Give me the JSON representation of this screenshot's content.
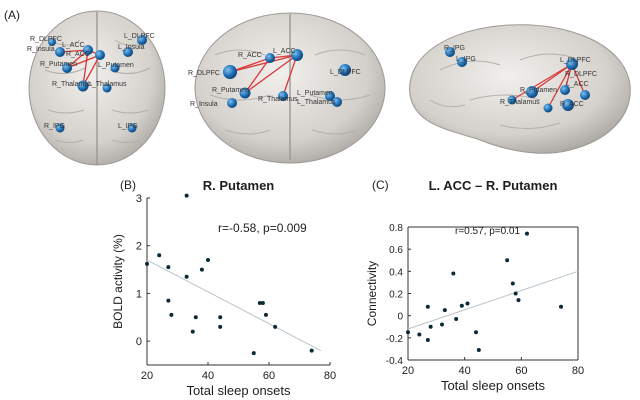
{
  "panelA": {
    "label": "(A)",
    "node_labels": {
      "top": [
        "R_DLPFC",
        "R_Insula",
        "L_ACC",
        "R_ACC",
        "L_DLPFC",
        "L_Insula",
        "R_Putamen",
        "L_Putamen",
        "R_Thalamus",
        "L_Thalamus",
        "R_IPG",
        "L_IPG"
      ],
      "front": [
        "R_DLPFC",
        "R_Putamen",
        "R_Insula",
        "R_ACC",
        "L_ACC",
        "L_DLPFC",
        "L_Putamen",
        "R_Thalamus",
        "L_Thalamus"
      ],
      "side": [
        "R_IPG",
        "L_IPG",
        "L_DLPFC",
        "R_DLPFC",
        "R_Putamen",
        "R_Thalamus",
        "L_ACC",
        "R_ACC"
      ]
    }
  },
  "panelB": {
    "label": "(B)",
    "chart_data": {
      "type": "scatter",
      "title": "R. Putamen",
      "xlabel": "Total sleep onsets",
      "ylabel": "BOLD activity (%)",
      "annotation": "r=-0.58, p=0.009",
      "xlim": [
        20,
        80
      ],
      "ylim": [
        -0.5,
        3
      ],
      "xticks": [
        "20",
        "40",
        "60",
        "80"
      ],
      "yticks": [
        "0",
        "1",
        "2",
        "3"
      ],
      "points": [
        {
          "x": 20,
          "y": 1.62
        },
        {
          "x": 24,
          "y": 1.8
        },
        {
          "x": 27,
          "y": 1.55
        },
        {
          "x": 27,
          "y": 0.85
        },
        {
          "x": 28,
          "y": 0.55
        },
        {
          "x": 33,
          "y": 3.05
        },
        {
          "x": 33,
          "y": 1.35
        },
        {
          "x": 35,
          "y": 0.2
        },
        {
          "x": 36,
          "y": 0.5
        },
        {
          "x": 38,
          "y": 1.5
        },
        {
          "x": 40,
          "y": 1.7
        },
        {
          "x": 44,
          "y": 0.3
        },
        {
          "x": 44,
          "y": 0.5
        },
        {
          "x": 55,
          "y": -0.25
        },
        {
          "x": 57,
          "y": 0.8
        },
        {
          "x": 58,
          "y": 0.8
        },
        {
          "x": 59,
          "y": 0.55
        },
        {
          "x": 62,
          "y": 0.3
        },
        {
          "x": 74,
          "y": -0.2
        }
      ],
      "trendline": {
        "x": [
          20,
          77
        ],
        "y": [
          1.7,
          -0.2
        ]
      },
      "grid": false
    }
  },
  "panelC": {
    "label": "(C)",
    "chart_data": {
      "type": "scatter",
      "title": "L. ACC – R. Putamen",
      "xlabel": "Total sleep onsets",
      "ylabel": "Connectivity",
      "annotation": "r=0.57, p=0.01",
      "xlim": [
        20,
        80
      ],
      "ylim": [
        -0.4,
        0.8
      ],
      "xticks": [
        "20",
        "40",
        "60",
        "80"
      ],
      "yticks": [
        "-0.4",
        "-0.2",
        "0",
        "0.2",
        "0.4",
        "0.6",
        "0.8"
      ],
      "points": [
        {
          "x": 20,
          "y": -0.15
        },
        {
          "x": 24,
          "y": -0.17
        },
        {
          "x": 27,
          "y": -0.22
        },
        {
          "x": 27,
          "y": 0.08
        },
        {
          "x": 28,
          "y": -0.1
        },
        {
          "x": 32,
          "y": -0.08
        },
        {
          "x": 33,
          "y": 0.05
        },
        {
          "x": 36,
          "y": 0.38
        },
        {
          "x": 37,
          "y": -0.03
        },
        {
          "x": 39,
          "y": 0.09
        },
        {
          "x": 41,
          "y": 0.11
        },
        {
          "x": 44,
          "y": -0.15
        },
        {
          "x": 45,
          "y": -0.31
        },
        {
          "x": 55,
          "y": 0.5
        },
        {
          "x": 57,
          "y": 0.29
        },
        {
          "x": 58,
          "y": 0.2
        },
        {
          "x": 59,
          "y": 0.14
        },
        {
          "x": 62,
          "y": 0.74
        },
        {
          "x": 74,
          "y": 0.08
        }
      ],
      "trendline": {
        "x": [
          20,
          80
        ],
        "y": [
          -0.12,
          0.4
        ]
      },
      "grid": false
    }
  },
  "colors": {
    "node": "#1f6fb5",
    "edge": "#d9383a",
    "point": "#0a2a38",
    "trend": "#b8c4cc",
    "brain": "#d2cfca"
  }
}
